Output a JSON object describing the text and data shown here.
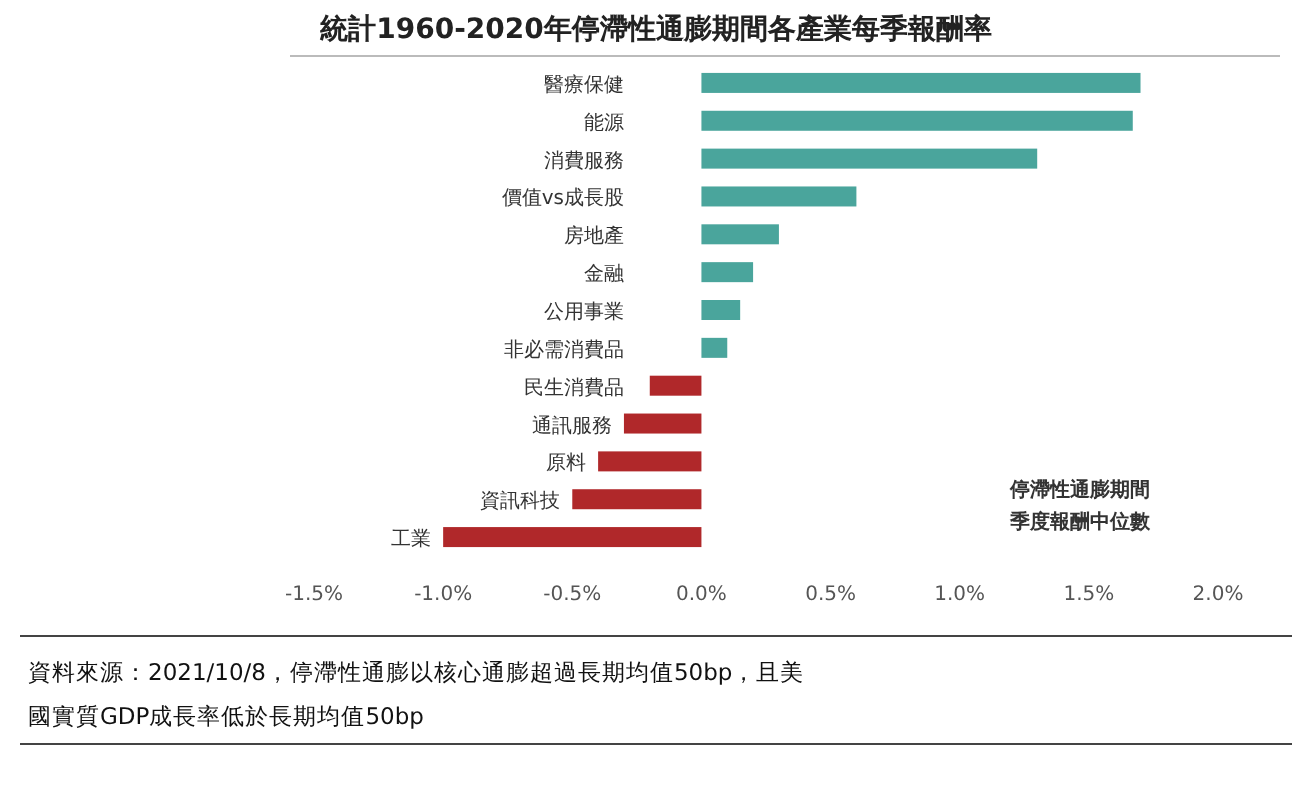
{
  "chart_data": {
    "type": "bar",
    "orientation": "horizontal",
    "title": "統計1960-2020年停滯性通膨期間各產業每季報酬率",
    "categories": [
      "醫療保健",
      "能源",
      "消費服務",
      "價值vs成長股",
      "房地產",
      "金融",
      "公用事業",
      "非必需消費品",
      "民生消費品",
      "通訊服務",
      "原料",
      "資訊科技",
      "工業"
    ],
    "values": [
      1.7,
      1.67,
      1.3,
      0.6,
      0.3,
      0.2,
      0.15,
      0.1,
      -0.2,
      -0.3,
      -0.4,
      -0.5,
      -1.0
    ],
    "colors": [
      "#4aa59c",
      "#4aa59c",
      "#4aa59c",
      "#4aa59c",
      "#4aa59c",
      "#4aa59c",
      "#4aa59c",
      "#4aa59c",
      "#b0282a",
      "#b0282a",
      "#b0282a",
      "#b0282a",
      "#b0282a"
    ],
    "xlim": [
      -1.5,
      2.0
    ],
    "xticks": [
      {
        "value": -1.5,
        "label": "-1.5%"
      },
      {
        "value": -1.0,
        "label": "-1.0%"
      },
      {
        "value": -0.5,
        "label": "-0.5%"
      },
      {
        "value": 0,
        "label": "0.0%"
      },
      {
        "value": 0.5,
        "label": "0.5%"
      },
      {
        "value": 1.0,
        "label": "1.0%"
      },
      {
        "value": 1.5,
        "label": "1.5%"
      },
      {
        "value": 2.0,
        "label": "2.0%"
      }
    ],
    "grid": false,
    "annotations": [
      "停滯性通膨期間",
      "季度報酬中位數",
      "資料來源：2021/10/8，停滯性通膨以核心通膨超過長期均值50bp，且美國實質GDP成長率低於長期均值50bp"
    ]
  }
}
